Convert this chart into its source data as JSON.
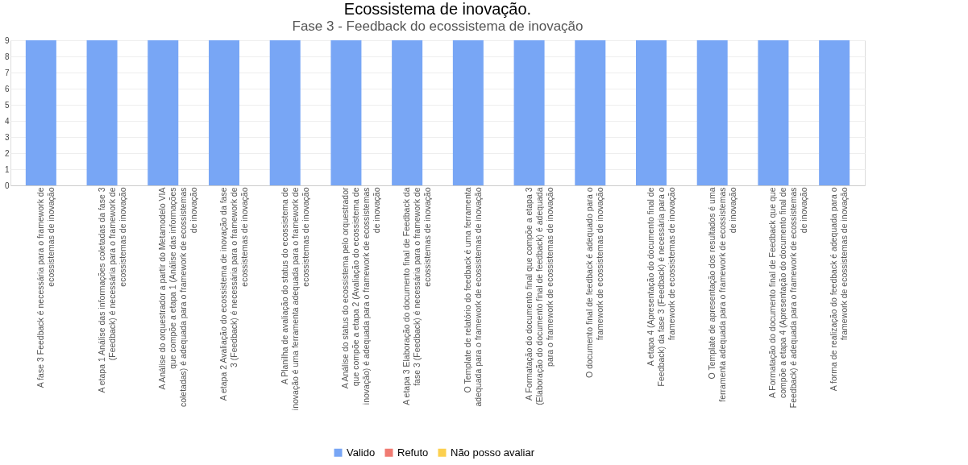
{
  "chart_data": {
    "type": "bar",
    "title": "Fase 3 - Feedback do ecossistema de inovação",
    "annotations": [
      "Ecossistema de inovação."
    ],
    "categories": [
      "A fase 3 Feedback é necessária para o framework de ecossistemas de inovação",
      "A etapa 1 Análise das informações coletadas da fase 3 (Feedback) é necessária para o framework de ecossistemas de inovação",
      "A Análise do orquestrador a partir do Metamodelo VIA que compõe a etapa 1 (Análise das informações coletadas) é adequada para o framework de ecossistemas de inovação",
      "A etapa 2 Avaliação do ecossistema de inovação da fase 3 (Feedback) é necessária para o framework de ecossistemas de inovação",
      "A Planilha de avaliação do status do ecossistema de inovação é uma ferramenta adequada para o framework de ecossistemas de inovação",
      "A Análise do status do ecossistema pelo orquestrador que compõe a etapa 2 (Avaliação do ecossistema de inovação) é adequada para o framework de ecossistemas de inovação",
      "A etapa 3 Elaboração do documento final de Feedback da fase 3 (Feedback) é necessária para o framework de ecossistemas de inovação",
      "O Template de relatório do feedback é uma ferramenta adequada para o framework de ecossistemas de inovação",
      "A Formatação do documento final que compõe a etapa 3 (Elaboração do documento final de feedback) é adequada para o framework de ecossistemas de inovação",
      "O documento final de feedback é adequado para o framework de ecossistemas de inovação",
      "A etapa 4 (Apresentação do documento final de Feedback) da fase 3 (Feedback) é necessária para o framework de ecossistemas de inovação",
      "O Template de apresentação dos resultados é uma ferramenta adequada para o framework de ecossistemas de inovação",
      "A Formatação do documento final de Feedback que que compõe a etapa 4 (Apresentação do documento final de Feedback) é adequada para o framework de ecossistemas de inovação",
      "A forma de realização do feedback é adequada para o framework de ecossistemas de inovação"
    ],
    "series": [
      {
        "name": "Valido",
        "color": "#78a6f5",
        "values": [
          9,
          9,
          9,
          9,
          9,
          9,
          9,
          9,
          9,
          9,
          9,
          9,
          9,
          9
        ]
      },
      {
        "name": "Refuto",
        "color": "#f07b72",
        "values": [
          0,
          0,
          0,
          0,
          0,
          0,
          0,
          0,
          0,
          0,
          0,
          0,
          0,
          0
        ]
      },
      {
        "name": "Não posso avaliar",
        "color": "#fcd04f",
        "values": [
          0,
          0,
          0,
          0,
          0,
          0,
          0,
          0,
          0,
          0,
          0,
          0,
          0,
          0
        ]
      }
    ],
    "stacked": true,
    "ylim": [
      0,
      9
    ],
    "yticks": [
      0,
      1,
      2,
      3,
      4,
      5,
      6,
      7,
      8,
      9
    ],
    "grid": "y",
    "legend": "bottom"
  }
}
